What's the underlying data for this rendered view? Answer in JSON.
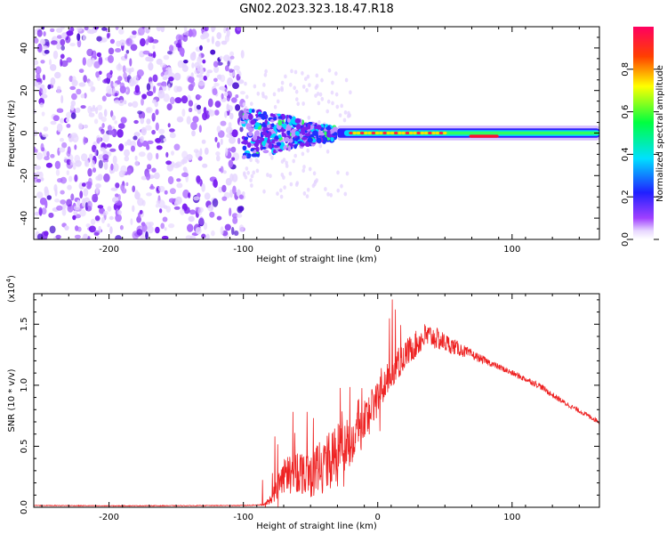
{
  "figure": {
    "title": "GN02.2023.323.18.47.R18"
  },
  "chart_data": [
    {
      "type": "heatmap",
      "name": "spectrogram",
      "xlabel": "Height of straight line (km)",
      "ylabel": "Frequency (Hz)",
      "xlim": [
        -256,
        165
      ],
      "ylim": [
        -50,
        50
      ],
      "x_ticks": [
        -200,
        -100,
        0,
        100
      ],
      "y_ticks": [
        -40,
        -20,
        0,
        20,
        40
      ],
      "colormap": "rainbow (violet → blue → cyan → green → yellow → red → magenta)",
      "regions": [
        {
          "x_range": [
            -256,
            -100
          ],
          "freq_range": [
            -50,
            50
          ],
          "amplitude": "low (0.0–0.2), scattered speckle"
        },
        {
          "x_range": [
            -100,
            -30
          ],
          "freq_range": [
            -12,
            12
          ],
          "amplitude": "0.1–0.5, turbulent onset"
        },
        {
          "x_range": [
            -30,
            70
          ],
          "freq_range": [
            -2,
            2
          ],
          "amplitude": "0.3–1.0, narrow line near 0 Hz"
        },
        {
          "x_range": [
            70,
            90
          ],
          "freq_range": [
            -2,
            1
          ],
          "amplitude": "0.9–1.0, strong line at ~-1.5 Hz"
        },
        {
          "x_range": [
            90,
            165
          ],
          "freq_range": [
            -3,
            3
          ],
          "amplitude": "0.4–0.6, steady line near 0 Hz"
        }
      ],
      "colorbar": {
        "label": "Normalized spectral amplitude",
        "range": [
          0,
          1
        ],
        "ticks": [
          "0.0",
          "0.2",
          "0.4",
          "0.6",
          "0.8"
        ],
        "colors": [
          "#ffffff",
          "#e8d8ff",
          "#a040ff",
          "#2020ff",
          "#00e0ff",
          "#00ff40",
          "#ffff00",
          "#ff4000",
          "#ff0060"
        ]
      }
    },
    {
      "type": "line",
      "name": "snr",
      "xlabel": "Height of straight line (km)",
      "ylabel": "SNR (10 * v/v)",
      "y_multiplier": "(x10",
      "y_multiplier_exp": "4",
      "y_multiplier_close": ")",
      "xlim": [
        -256,
        165
      ],
      "ylim": [
        0,
        17500
      ],
      "x_ticks": [
        -200,
        -100,
        0,
        100
      ],
      "y_ticks": [
        {
          "value": 0,
          "label": "0.0"
        },
        {
          "value": 5000,
          "label": "0.5"
        },
        {
          "value": 10000,
          "label": "1.0"
        },
        {
          "value": 15000,
          "label": "1.5"
        }
      ],
      "series": [
        {
          "color": "#ee2222",
          "x": [
            -256,
            -200,
            -150,
            -100,
            -85,
            -80,
            -70,
            -60,
            -50,
            -40,
            -30,
            -20,
            -10,
            0,
            10,
            20,
            30,
            35,
            40,
            50,
            60,
            70,
            80,
            90,
            100,
            110,
            120,
            130,
            140,
            150,
            165
          ],
          "values": [
            150,
            120,
            130,
            150,
            200,
            600,
            2500,
            3000,
            2800,
            3500,
            4500,
            5500,
            7000,
            9000,
            11000,
            12500,
            13500,
            14000,
            14000,
            13500,
            13000,
            12500,
            12000,
            11500,
            11000,
            10500,
            10000,
            9200,
            8500,
            7900,
            7000
          ],
          "noise": [
            30,
            30,
            30,
            30,
            50,
            400,
            1500,
            1800,
            2000,
            2200,
            2500,
            2200,
            2000,
            1500,
            1300,
            1200,
            1100,
            1100,
            1000,
            800,
            600,
            400,
            300,
            250,
            250,
            250,
            250,
            250,
            200,
            200,
            200
          ]
        }
      ]
    }
  ]
}
